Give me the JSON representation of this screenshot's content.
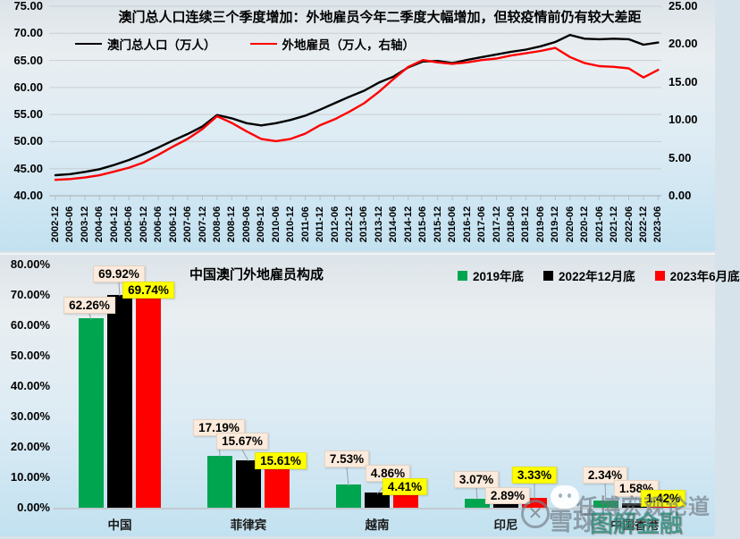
{
  "watermark": {
    "platform": "雪球",
    "separator": "·",
    "account": "任博宏观论道",
    "overlay": "图解金融",
    "icons": [
      "wechat-icon",
      "xueqiu-logo"
    ]
  },
  "colors": {
    "population_line": "#000000",
    "foreign_employee_line": "#ff0000",
    "series_2019": "#00a550",
    "series_2022": "#000000",
    "series_2023": "#ff0000",
    "callout_bg": "#fcebdc",
    "callout_highlight_bg": "#ffff00",
    "gridline": "#c9ced3",
    "axis_line": "#b6bec4"
  },
  "chart_data": [
    {
      "type": "line",
      "title": "澳门总人口连续三个季度增加：外地雇员今年二季度大幅增加，但较疫情前仍有较大差距",
      "legend_position": "top",
      "grid": true,
      "x": [
        "2002-12",
        "2003-06",
        "2003-12",
        "2004-06",
        "2004-12",
        "2005-06",
        "2005-12",
        "2006-06",
        "2006-12",
        "2007-06",
        "2007-12",
        "2008-06",
        "2008-12",
        "2009-06",
        "2009-12",
        "2010-06",
        "2010-12",
        "2011-06",
        "2011-12",
        "2012-06",
        "2012-12",
        "2013-06",
        "2013-12",
        "2014-06",
        "2014-12",
        "2015-06",
        "2015-12",
        "2016-06",
        "2016-12",
        "2017-06",
        "2017-12",
        "2018-06",
        "2018-12",
        "2019-06",
        "2019-12",
        "2020-06",
        "2020-12",
        "2021-06",
        "2021-12",
        "2022-06",
        "2022-12",
        "2023-06"
      ],
      "left_axis": {
        "min": 40,
        "max": 75,
        "values": [
          40,
          45,
          50,
          55,
          60,
          65,
          70,
          75
        ],
        "labels": [
          "40.00",
          "45.00",
          "50.00",
          "55.00",
          "60.00",
          "65.00",
          "70.00",
          "75.00"
        ]
      },
      "right_axis": {
        "min": 0,
        "max": 25,
        "values": [
          0,
          5,
          10,
          15,
          20,
          25
        ],
        "labels": [
          "0.00",
          "5.00",
          "10.00",
          "15.00",
          "20.00",
          "25.00"
        ]
      },
      "series": [
        {
          "name": "澳门总人口（万人）",
          "axis": "left",
          "color": "#000000",
          "values": [
            43.8,
            44.0,
            44.4,
            44.9,
            45.7,
            46.6,
            47.7,
            48.9,
            50.2,
            51.4,
            52.8,
            54.9,
            54.3,
            53.4,
            53.0,
            53.4,
            54.0,
            54.8,
            55.9,
            57.1,
            58.3,
            59.4,
            60.9,
            62.0,
            63.7,
            64.8,
            64.9,
            64.5,
            65.1,
            65.6,
            66.1,
            66.6,
            67.0,
            67.6,
            68.4,
            69.7,
            69.0,
            68.9,
            69.0,
            68.9,
            67.9,
            68.3
          ]
        },
        {
          "name": "外地雇员（万人，右轴）",
          "axis": "right",
          "color": "#ff0000",
          "values": [
            2.1,
            2.2,
            2.4,
            2.7,
            3.2,
            3.7,
            4.4,
            5.4,
            6.5,
            7.5,
            8.8,
            10.5,
            9.6,
            8.5,
            7.5,
            7.2,
            7.5,
            8.2,
            9.3,
            10.1,
            11.1,
            12.2,
            13.7,
            15.4,
            17.0,
            17.9,
            17.6,
            17.4,
            17.6,
            17.9,
            18.1,
            18.5,
            18.8,
            19.1,
            19.5,
            18.3,
            17.5,
            17.1,
            17.0,
            16.8,
            15.6,
            16.6
          ]
        }
      ]
    },
    {
      "type": "bar",
      "title": "中国澳门外地雇员构成",
      "legend_position": "top-right",
      "grid": false,
      "categories": [
        "中国",
        "菲律宾",
        "越南",
        "印尼",
        "中国香港"
      ],
      "ylim": [
        0,
        80
      ],
      "yticks": {
        "values": [
          0,
          10,
          20,
          30,
          40,
          50,
          60,
          70,
          80
        ],
        "labels": [
          "0.00%",
          "10.00%",
          "20.00%",
          "30.00%",
          "40.00%",
          "50.00%",
          "60.00%",
          "70.00%",
          "80.00%"
        ]
      },
      "series": [
        {
          "name": "2019年底",
          "color": "#00a550",
          "label_bg": "#fcebdc",
          "values": [
            62.26,
            17.19,
            7.53,
            3.07,
            2.34
          ],
          "value_labels": [
            "62.26%",
            "17.19%",
            "7.53%",
            "3.07%",
            "2.34%"
          ]
        },
        {
          "name": "2022年12月底",
          "color": "#000000",
          "label_bg": "#fcebdc",
          "values": [
            69.92,
            15.67,
            4.86,
            2.89,
            1.58
          ],
          "value_labels": [
            "69.92%",
            "15.67%",
            "4.86%",
            "2.89%",
            "1.58%"
          ]
        },
        {
          "name": "2023年6月底",
          "color": "#ff0000",
          "label_bg": "#ffff00",
          "values": [
            69.74,
            15.61,
            4.41,
            3.33,
            1.42
          ],
          "value_labels": [
            "69.74%",
            "15.61%",
            "4.41%",
            "3.33%",
            "1.42%"
          ]
        }
      ]
    }
  ]
}
